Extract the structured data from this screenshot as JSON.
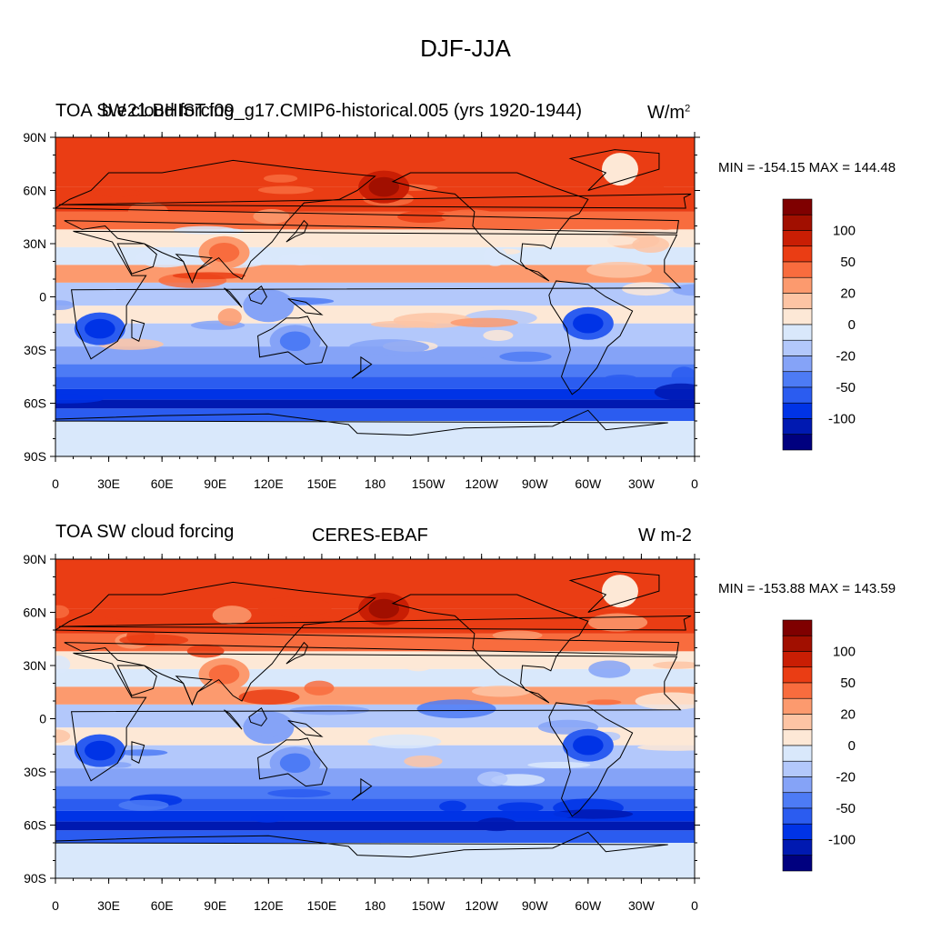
{
  "title": "DJF-JJA",
  "colors": {
    "levels": [
      "#00007f",
      "#0019b1",
      "#0033e6",
      "#2b5cf0",
      "#4d7bf5",
      "#85a3f7",
      "#b3c8fb",
      "#d9e8fb",
      "#fde8d6",
      "#fdc4a4",
      "#fc9a6e",
      "#f86c3e",
      "#ea3d14",
      "#c91e04",
      "#a10f00",
      "#7f0000"
    ],
    "land_outline": "#000000"
  },
  "colorbar": {
    "labels": [
      "100",
      "50",
      "20",
      "0",
      "-20",
      "-50",
      "-100"
    ]
  },
  "map_axes": {
    "lat_labels": [
      "90N",
      "60N",
      "30N",
      "0",
      "30S",
      "60S",
      "90S"
    ],
    "lon_labels": [
      "0",
      "30E",
      "60E",
      "90E",
      "120E",
      "150E",
      "180",
      "150W",
      "120W",
      "90W",
      "60W",
      "30W",
      "0"
    ]
  },
  "panels": [
    {
      "left_title": "TOA SW cloud forcing",
      "center_title": "b.e21.BHIST.f09_g17.CMIP6-historical.005 (yrs 1920-1944)",
      "units": "W/m",
      "units_sup": "2",
      "min_max": "MIN = -154.15 MAX = 144.48"
    },
    {
      "left_title": "TOA SW cloud forcing",
      "center_title": "CERES-EBAF",
      "units": "W m-2",
      "units_sup": "",
      "min_max": "MIN = -153.88 MAX = 143.59"
    }
  ],
  "chart_data": {
    "type": "heatmap",
    "projection": "cylindrical-equidistant",
    "title": "DJF-JJA",
    "variable": "TOA SW cloud forcing",
    "contour_levels": [
      -100,
      -75,
      -50,
      -35,
      -20,
      -10,
      0,
      10,
      20,
      35,
      50,
      75,
      100
    ],
    "lat_range": [
      -90,
      90
    ],
    "lon_range": [
      0,
      360
    ],
    "panels": [
      {
        "dataset": "b.e21.BHIST.f09_g17.CMIP6-historical.005 (yrs 1920-1944)",
        "units": "W/m2",
        "min": -154.15,
        "max": 144.48
      },
      {
        "dataset": "CERES-EBAF",
        "units": "W m-2",
        "min": -153.88,
        "max": 143.59
      }
    ],
    "zonal_bands": [
      {
        "lat": [
          62,
          90
        ],
        "value": 60
      },
      {
        "lat": [
          48,
          62
        ],
        "value": 50
      },
      {
        "lat": [
          38,
          48
        ],
        "value": 40
      },
      {
        "lat": [
          28,
          38
        ],
        "value": 5
      },
      {
        "lat": [
          18,
          28
        ],
        "value": -8
      },
      {
        "lat": [
          8,
          18
        ],
        "value": 30
      },
      {
        "lat": [
          -5,
          8
        ],
        "value": -20
      },
      {
        "lat": [
          -15,
          -5
        ],
        "value": 8
      },
      {
        "lat": [
          -28,
          -15
        ],
        "value": -12
      },
      {
        "lat": [
          -38,
          -28
        ],
        "value": -25
      },
      {
        "lat": [
          -45,
          -38
        ],
        "value": -45
      },
      {
        "lat": [
          -52,
          -45
        ],
        "value": -70
      },
      {
        "lat": [
          -58,
          -52
        ],
        "value": -90
      },
      {
        "lat": [
          -63,
          -58
        ],
        "value": -115
      },
      {
        "lat": [
          -70,
          -63
        ],
        "value": -60
      },
      {
        "lat": [
          -90,
          -70
        ],
        "value": -3
      }
    ],
    "regional_features": [
      {
        "name": "north-pacific-max",
        "lon": 185,
        "lat": 62,
        "value": 140
      },
      {
        "name": "greenland",
        "lon": 318,
        "lat": 72,
        "value": 5
      },
      {
        "name": "southern-africa",
        "lon": 25,
        "lat": -18,
        "value": -80
      },
      {
        "name": "south-america",
        "lon": 300,
        "lat": -15,
        "value": -90
      },
      {
        "name": "australia",
        "lon": 135,
        "lat": -25,
        "value": -40
      },
      {
        "name": "maritime-continent",
        "lon": 120,
        "lat": -5,
        "value": -30
      },
      {
        "name": "south-asia",
        "lon": 95,
        "lat": 25,
        "value": 35
      }
    ]
  }
}
